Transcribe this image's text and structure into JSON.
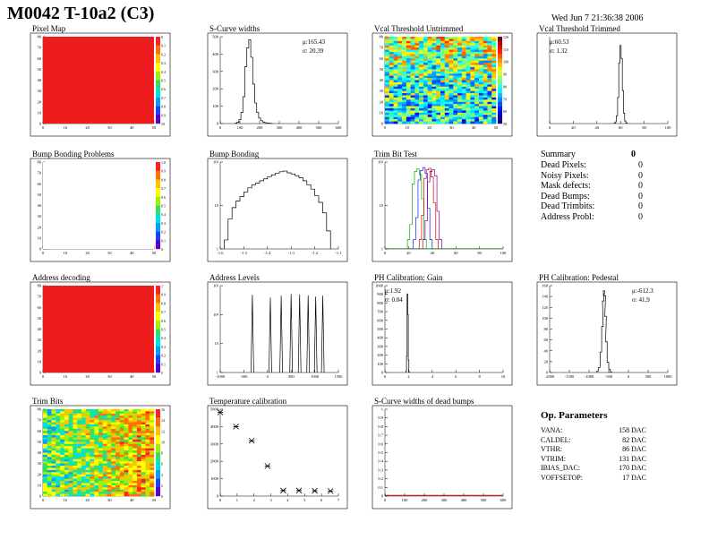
{
  "header": {
    "title": "M0042 T-10a2 (C3)",
    "date": "Wed Jun  7 21:36:38 2006"
  },
  "colors": {
    "map_red": "#ee1c1c",
    "axis": "#000000",
    "trim_red": "#e00000",
    "trim_blue": "#1a1aee",
    "trim_green": "#00b000",
    "gain_red": "#cc0000"
  },
  "panels": {
    "pixel_map": {
      "title": "Pixel Map",
      "xticks": [
        "0",
        "10",
        "20",
        "30",
        "40",
        "50"
      ],
      "yticks": [
        "0",
        "10",
        "20",
        "30",
        "40",
        "50",
        "60",
        "70",
        "80"
      ],
      "zticks": [
        "0",
        "0.1",
        "0.2",
        "0.3",
        "0.4",
        "0.5",
        "0.6",
        "0.7",
        "0.8",
        "0.9",
        "10"
      ]
    },
    "scurve_widths": {
      "title": "S-Curve widths",
      "stats": [
        "μ:165.43",
        "σ: 20.39"
      ],
      "xticks": [
        "0",
        "100",
        "200",
        "300",
        "400",
        "500",
        "600"
      ],
      "yticks": [
        "0",
        "100",
        "200",
        "300",
        "400",
        "500"
      ]
    },
    "vcal_untrimmed": {
      "title": "Vcal Threshold Untrimmed",
      "xticks": [
        "0",
        "10",
        "20",
        "30",
        "40",
        "50"
      ],
      "yticks": [
        "0",
        "10",
        "20",
        "30",
        "40",
        "50",
        "60",
        "70",
        "80"
      ],
      "zticks": [
        "120",
        "110",
        "100",
        "90",
        "80",
        "70",
        "60",
        "50"
      ]
    },
    "vcal_trimmed": {
      "title": "Vcal Threshold Trimmed",
      "stats": [
        "μ:60.53",
        "σ: 1.32"
      ],
      "xticks": [
        "0",
        "20",
        "40",
        "60",
        "80",
        "100"
      ]
    },
    "bump_problems": {
      "title": "Bump Bonding Problems",
      "xticks": [
        "0",
        "10",
        "20",
        "30",
        "40",
        "50"
      ],
      "yticks": [
        "0",
        "10",
        "20",
        "30",
        "40",
        "50",
        "60",
        "70",
        "80"
      ],
      "zticks": [
        "1.0",
        "0.9",
        "0.8",
        "0.7",
        "0.6",
        "0.5",
        "0.4",
        "0.3",
        "0.2",
        "0.1",
        "0"
      ]
    },
    "bump_bonding": {
      "title": "Bump Bonding",
      "xticks": [
        "-1.6",
        "-1.5",
        "-1.4",
        "-1.3",
        "-1.2",
        "-1.1"
      ],
      "yticks": [
        "1",
        "10",
        "10²"
      ]
    },
    "trim_bit_test": {
      "title": "Trim Bit Test",
      "xticks": [
        "0",
        "20",
        "40",
        "60",
        "80",
        "100"
      ],
      "yticks": [
        "1",
        "10",
        "10²"
      ]
    },
    "address_decoding": {
      "title": "Address decoding",
      "xticks": [
        "0",
        "10",
        "20",
        "30",
        "40",
        "50"
      ],
      "yticks": [
        "0",
        "10",
        "20",
        "30",
        "40",
        "50",
        "60",
        "70",
        "80"
      ],
      "zticks": [
        "1",
        "0.9",
        "0.8",
        "0.7",
        "0.6",
        "0.5",
        "0.4",
        "0.3",
        "0.2",
        "0.1",
        "0"
      ]
    },
    "address_levels": {
      "title": "Address Levels",
      "xticks": [
        "-1000",
        "-500",
        "0",
        "500",
        "1000",
        "1500"
      ],
      "yticks": [
        "1",
        "10",
        "10²",
        "10³"
      ]
    },
    "ph_gain": {
      "title": "PH Calibration: Gain",
      "stats": [
        "μ:1.92",
        "σ: 0.04"
      ],
      "xticks": [
        "0",
        "2",
        "4",
        "6",
        "8",
        "10"
      ],
      "yticks": [
        "0",
        "100",
        "200",
        "300",
        "400",
        "500",
        "600",
        "700",
        "800",
        "900",
        "1000"
      ]
    },
    "ph_pedestal": {
      "title": "PH Calibration: Pedestal",
      "stats": [
        "μ:-612.3",
        "σ: 41.9"
      ],
      "xticks": [
        "-2000",
        "-1500",
        "-1000",
        "-500",
        "0",
        "500",
        "1000"
      ],
      "yticks": [
        "0",
        "20",
        "40",
        "60",
        "80",
        "100",
        "120",
        "140",
        "160"
      ]
    },
    "trim_bits": {
      "title": "Trim Bits",
      "xticks": [
        "0",
        "10",
        "20",
        "30",
        "40",
        "50"
      ],
      "yticks": [
        "0",
        "10",
        "20",
        "30",
        "40",
        "50",
        "60",
        "70",
        "80"
      ],
      "zticks": [
        "16",
        "14",
        "12",
        "10",
        "8",
        "6",
        "4",
        "2",
        "0"
      ]
    },
    "temp_cal": {
      "title": "Temperature calibration",
      "xticks": [
        "0",
        "1",
        "2",
        "3",
        "4",
        "5",
        "6",
        "7"
      ],
      "yticks": [
        "0",
        "1000",
        "2000",
        "3000",
        "4000",
        "5000"
      ]
    },
    "scurve_dead": {
      "title": "S-Curve widths of dead bumps",
      "xticks": [
        "0",
        "100",
        "200",
        "300",
        "400",
        "500",
        "600"
      ],
      "yticks": [
        "0",
        "0.1",
        "0.2",
        "0.3",
        "0.4",
        "0.5",
        "0.6",
        "0.7",
        "0.8",
        "0.9",
        "1"
      ]
    }
  },
  "summary": {
    "title": "Summary",
    "total": "0",
    "rows": [
      {
        "label": "Dead Pixels:",
        "value": "0"
      },
      {
        "label": "Noisy Pixels:",
        "value": "0"
      },
      {
        "label": "Mask defects:",
        "value": "0"
      },
      {
        "label": "Dead Bumps:",
        "value": "0"
      },
      {
        "label": "Dead Trimbits:",
        "value": "0"
      },
      {
        "label": "Address Probl:",
        "value": "0"
      }
    ]
  },
  "op_params": {
    "title": "Op. Parameters",
    "rows": [
      {
        "label": "VANA:",
        "value": "158 DAC"
      },
      {
        "label": "CALDEL:",
        "value": "82 DAC"
      },
      {
        "label": "VTHR:",
        "value": "86 DAC"
      },
      {
        "label": "VTRIM:",
        "value": "131 DAC"
      },
      {
        "label": "IBIAS_DAC:",
        "value": "170 DAC"
      },
      {
        "label": "VOFFSETOP:",
        "value": "17 DAC"
      }
    ]
  },
  "chart_data": [
    {
      "type": "heatmap",
      "id": "pixel_map",
      "xlim": [
        0,
        52
      ],
      "ylim": [
        0,
        80
      ],
      "zlim": [
        0,
        10
      ],
      "fill": "uniform-max"
    },
    {
      "type": "bar",
      "id": "scurve_widths",
      "xlim": [
        0,
        600
      ],
      "ylim": [
        0,
        550
      ],
      "x": [
        80,
        90,
        100,
        110,
        120,
        130,
        140,
        150,
        160,
        170,
        180,
        190,
        200,
        210,
        220,
        230,
        240,
        250,
        260
      ],
      "values": [
        2,
        8,
        25,
        70,
        170,
        360,
        480,
        530,
        420,
        250,
        130,
        70,
        35,
        18,
        10,
        6,
        3,
        2,
        1
      ]
    },
    {
      "type": "heatmap",
      "id": "vcal_untrimmed",
      "xlim": [
        0,
        52
      ],
      "ylim": [
        0,
        80
      ],
      "zlim": [
        45,
        125
      ]
    },
    {
      "type": "bar",
      "id": "vcal_trimmed",
      "xlim": [
        0,
        100
      ],
      "ylim": [
        0,
        1000
      ],
      "x": [
        55,
        56,
        57,
        58,
        59,
        60,
        61,
        62,
        63,
        64,
        65
      ],
      "values": [
        5,
        20,
        90,
        300,
        700,
        900,
        750,
        380,
        120,
        30,
        8
      ]
    },
    {
      "type": "heatmap",
      "id": "bump_problems",
      "xlim": [
        0,
        52
      ],
      "ylim": [
        0,
        80
      ],
      "zlim": [
        0,
        1
      ],
      "fill": "uniform-min"
    },
    {
      "type": "bar",
      "id": "bump_bonding",
      "log_y": true,
      "xlim": [
        -1.65,
        -1.05
      ],
      "ylim": [
        0.5,
        400
      ],
      "x": [
        -1.62,
        -1.6,
        -1.58,
        -1.56,
        -1.54,
        -1.52,
        -1.5,
        -1.48,
        -1.46,
        -1.44,
        -1.42,
        -1.4,
        -1.38,
        -1.36,
        -1.34,
        -1.32,
        -1.3,
        -1.28,
        -1.26,
        -1.24,
        -1.22,
        -1.2,
        -1.18,
        -1.16,
        -1.14,
        -1.12,
        -1.1
      ],
      "values": [
        1,
        5,
        12,
        20,
        28,
        40,
        55,
        70,
        80,
        95,
        110,
        130,
        150,
        170,
        190,
        200,
        175,
        160,
        140,
        120,
        95,
        70,
        50,
        30,
        18,
        8,
        2
      ]
    },
    {
      "type": "line",
      "id": "trim_bit_test",
      "log_y": true,
      "xlim": [
        0,
        100
      ],
      "ylim": [
        0.5,
        300
      ],
      "series": [
        {
          "color": "green",
          "x": [
            20,
            22,
            24,
            26,
            28,
            30,
            32,
            34
          ],
          "values": [
            1,
            3,
            60,
            150,
            180,
            120,
            20,
            1
          ]
        },
        {
          "color": "blue",
          "x": [
            25,
            27,
            29,
            31,
            33,
            35,
            37,
            39
          ],
          "values": [
            1,
            5,
            80,
            160,
            200,
            130,
            10,
            1
          ]
        },
        {
          "color": "red",
          "x": [
            30,
            32,
            34,
            36,
            38,
            40,
            42,
            44
          ],
          "values": [
            1,
            6,
            90,
            170,
            190,
            100,
            15,
            1
          ]
        },
        {
          "color": "purple",
          "x": [
            33,
            35,
            37,
            39,
            41,
            43,
            45,
            47
          ],
          "values": [
            1,
            4,
            70,
            150,
            170,
            110,
            8,
            1
          ]
        }
      ]
    },
    {
      "type": "heatmap",
      "id": "address_decoding",
      "xlim": [
        0,
        52
      ],
      "ylim": [
        0,
        80
      ],
      "zlim": [
        0,
        1
      ],
      "fill": "uniform-max"
    },
    {
      "type": "bar",
      "id": "address_levels",
      "log_y": true,
      "xlim": [
        -1000,
        1500
      ],
      "ylim": [
        0.5,
        3000
      ],
      "x": [
        -320,
        60,
        290,
        500,
        680,
        860,
        1020,
        1170
      ],
      "values": [
        1200,
        900,
        1100,
        1300,
        1250,
        1150,
        1000,
        1100
      ]
    },
    {
      "type": "bar",
      "id": "ph_gain",
      "xlim": [
        0,
        10
      ],
      "ylim": [
        0,
        1050
      ],
      "x": [
        1.8,
        1.85,
        1.9,
        1.95,
        2.0,
        2.05
      ],
      "values": [
        20,
        200,
        950,
        700,
        150,
        10
      ]
    },
    {
      "type": "bar",
      "id": "ph_pedestal",
      "xlim": [
        -2000,
        1000
      ],
      "ylim": [
        0,
        170
      ],
      "x": [
        -780,
        -740,
        -700,
        -660,
        -640,
        -620,
        -600,
        -580,
        -560,
        -520,
        -480,
        -440
      ],
      "values": [
        3,
        10,
        40,
        90,
        140,
        160,
        150,
        110,
        60,
        20,
        6,
        1
      ]
    },
    {
      "type": "heatmap",
      "id": "trim_bits",
      "xlim": [
        0,
        52
      ],
      "ylim": [
        0,
        80
      ],
      "zlim": [
        0,
        16
      ]
    },
    {
      "type": "scatter",
      "id": "temp_cal",
      "xlim": [
        0,
        7.5
      ],
      "ylim": [
        0,
        5500
      ],
      "x": [
        0,
        1,
        2,
        3,
        4,
        5,
        6,
        7
      ],
      "values": [
        5300,
        4400,
        3500,
        1900,
        350,
        350,
        330,
        320
      ]
    },
    {
      "type": "line",
      "id": "scurve_dead",
      "xlim": [
        0,
        600
      ],
      "ylim": [
        0,
        1
      ],
      "x": [
        0,
        600
      ],
      "values": [
        0,
        0
      ]
    }
  ]
}
